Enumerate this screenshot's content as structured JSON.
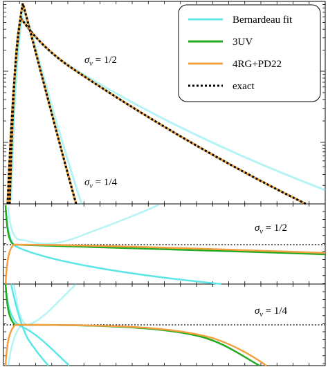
{
  "chart_data": [
    {
      "type": "line",
      "panel": "top",
      "yscale": "log",
      "grid": false,
      "legend_position": "top-right",
      "xlabel": "",
      "ylabel": "",
      "series": [
        {
          "name": "Bernardeau fit",
          "color": "#5ce6e6",
          "style": "solid"
        },
        {
          "name": "3UV",
          "color": "#22aa22",
          "style": "solid"
        },
        {
          "name": "4RG+PD22",
          "color": "#f4a040",
          "style": "solid"
        },
        {
          "name": "exact",
          "color": "#000000",
          "style": "dotted"
        }
      ],
      "annotations": [
        {
          "sigma_label": "σ",
          "sub": "v",
          "value": " = 1/2"
        },
        {
          "sigma_label": "σ",
          "sub": "v",
          "value": " = 1/4"
        }
      ]
    },
    {
      "type": "line",
      "panel": "middle",
      "grid": false,
      "reference_line": "dotted",
      "annotation": {
        "sigma_label": "σ",
        "sub": "v",
        "value": " = 1/2"
      }
    },
    {
      "type": "line",
      "panel": "bottom",
      "grid": false,
      "reference_line": "dotted",
      "annotation": {
        "sigma_label": "σ",
        "sub": "v",
        "value": " = 1/4"
      }
    }
  ]
}
